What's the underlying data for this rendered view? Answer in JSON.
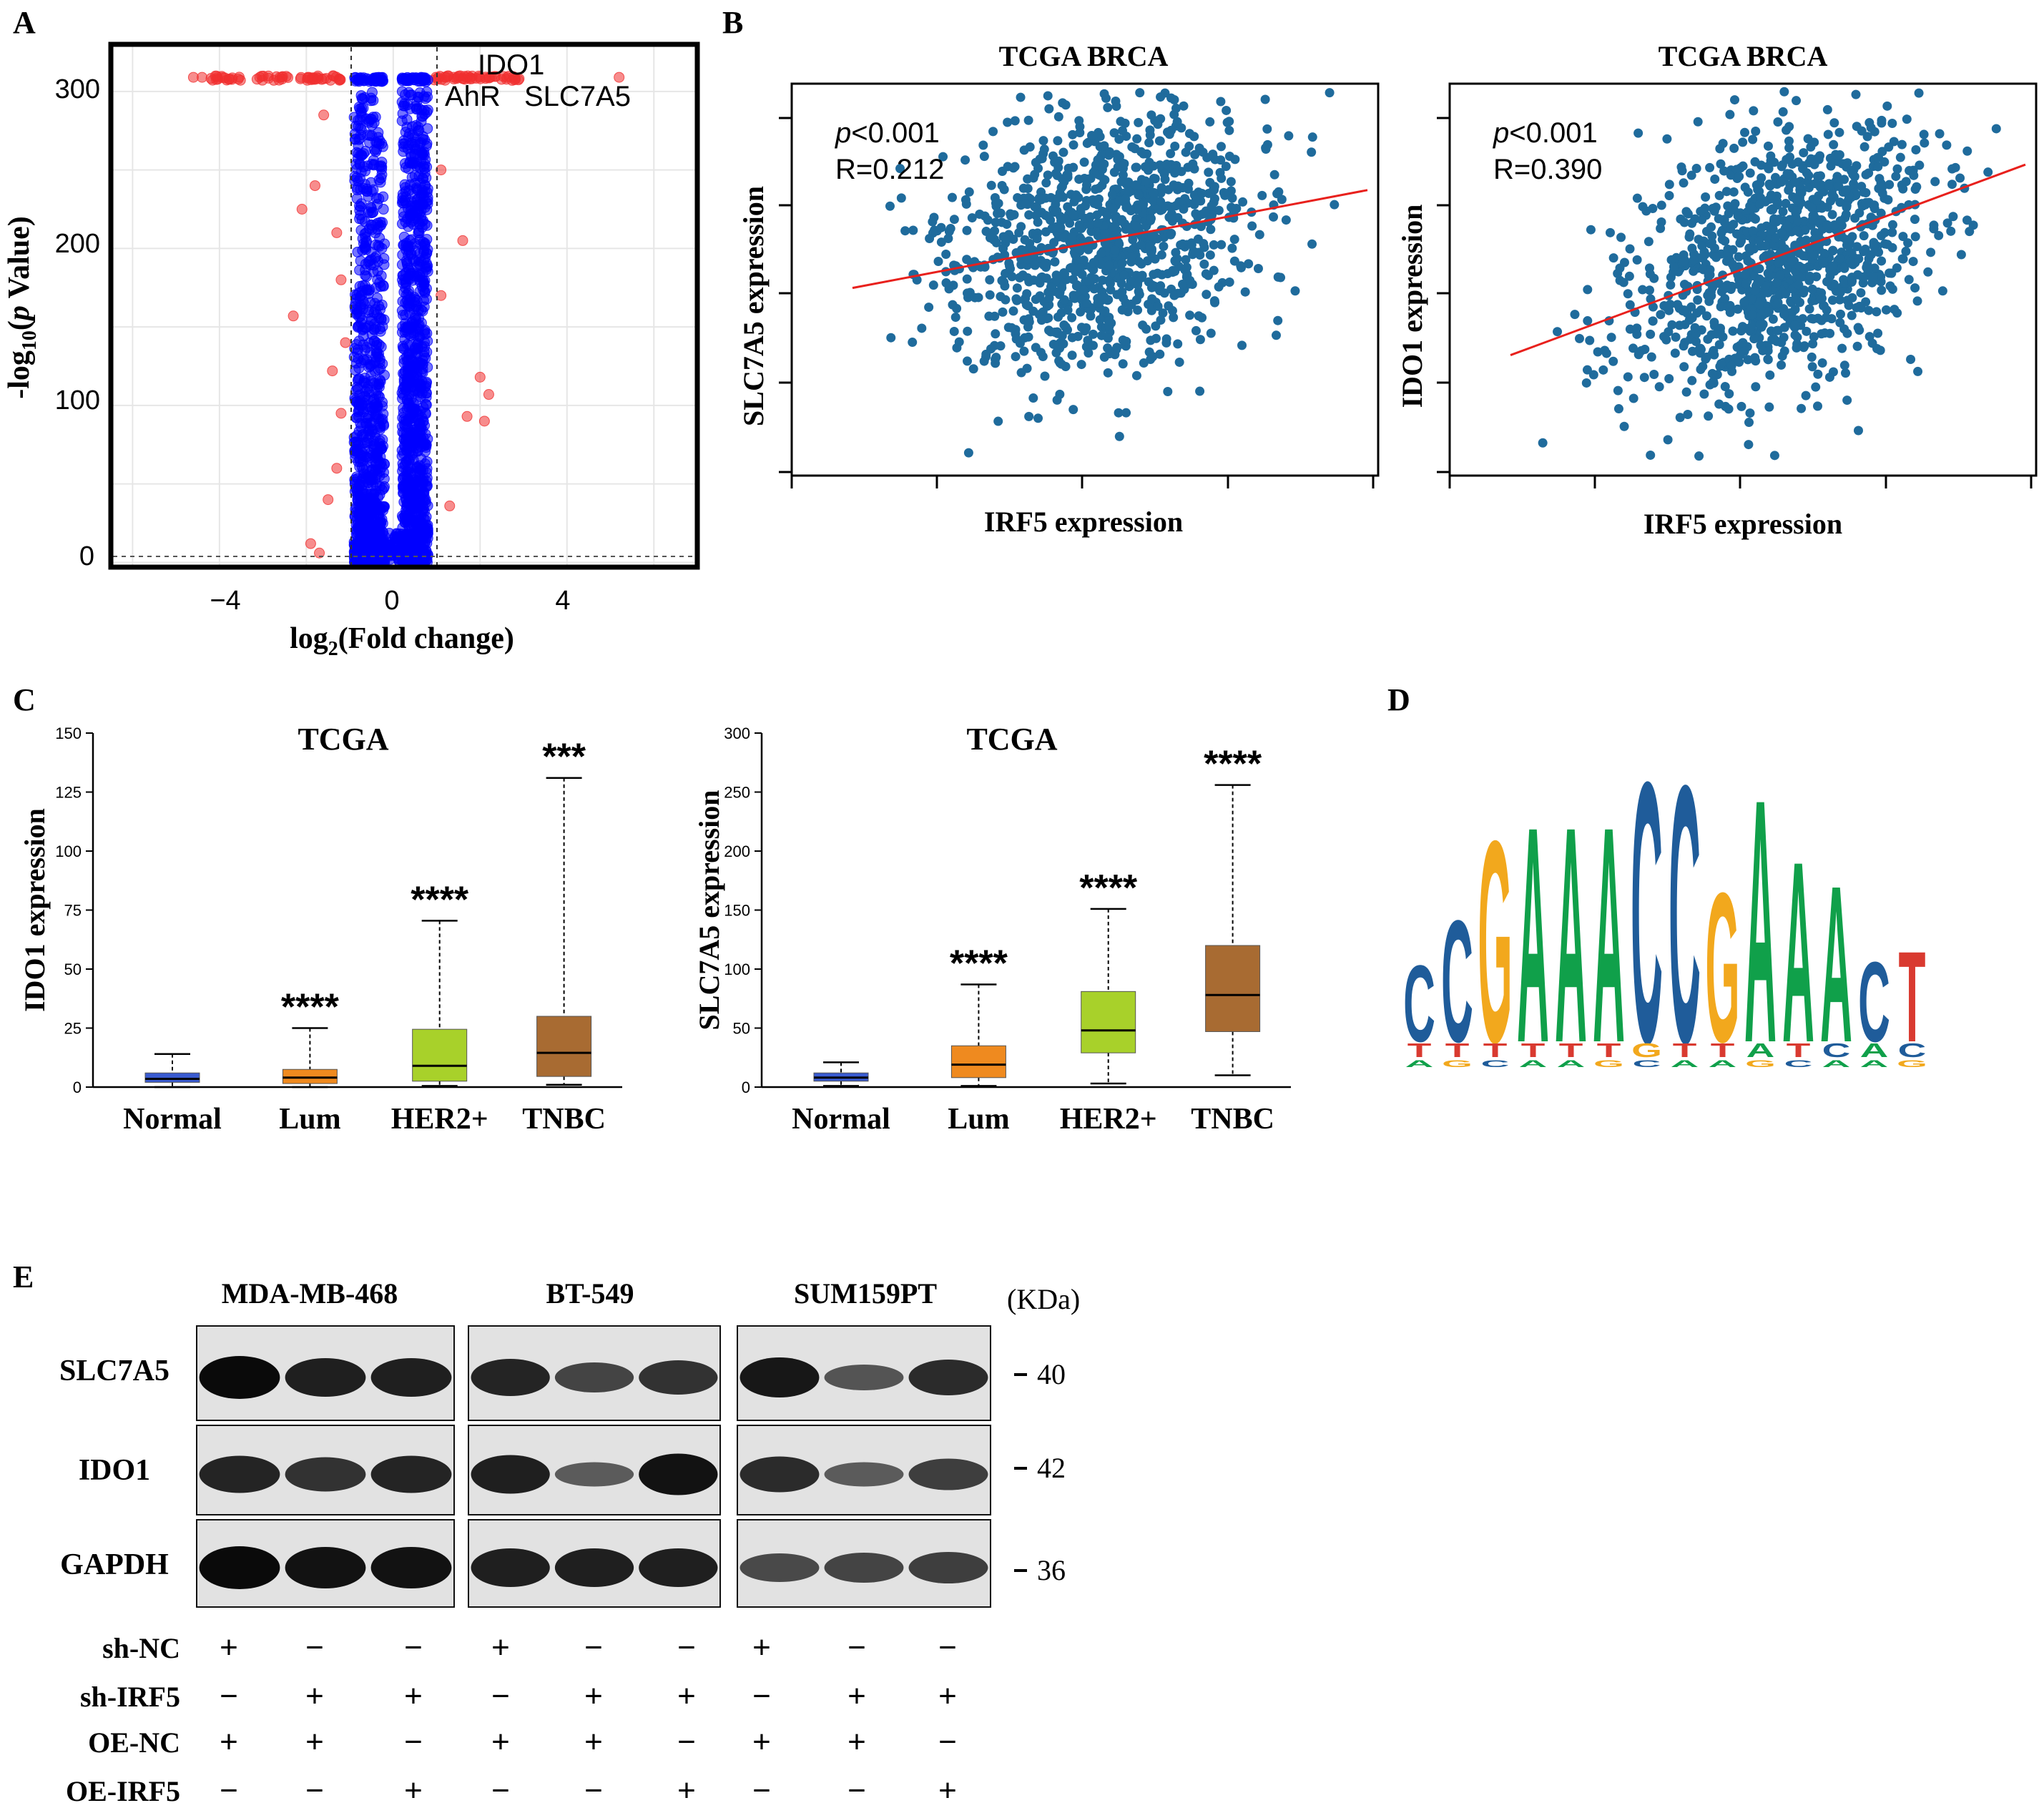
{
  "panels": {
    "A": {
      "letter": "A",
      "xlabel_main": "log",
      "xlabel_sub": "2",
      "xlabel_rest": "(Fold change)",
      "ylabel_pre": "-log",
      "ylabel_sub": "10",
      "ylabel_p": "p",
      "ylabel_rest": " Value)",
      "xticks": [
        "−4",
        "0",
        "4"
      ],
      "yticks": [
        "0",
        "100",
        "200",
        "300"
      ],
      "gene_labels": [
        "IDO1",
        "AhR",
        "SLC7A5"
      ]
    },
    "B": {
      "letter": "B",
      "plots": [
        {
          "title": "TCGA BRCA",
          "xlabel": "IRF5 expression",
          "ylabel": "SLC7A5 expression",
          "p_italic": "p",
          "p_rest": "<0.001",
          "r_text": "R=0.212"
        },
        {
          "title": "TCGA BRCA",
          "xlabel": "IRF5 expression",
          "ylabel": "IDO1 expression",
          "p_italic": "p",
          "p_rest": "<0.001",
          "r_text": "R=0.390"
        }
      ]
    },
    "C": {
      "letter": "C"
    },
    "D": {
      "letter": "D",
      "logo_top": [
        "C",
        "C",
        "G",
        "A",
        "A",
        "A",
        "C",
        "C",
        "G",
        "A",
        "A",
        "A",
        "C",
        "T"
      ]
    },
    "E": {
      "letter": "E",
      "cell_lines": [
        "MDA-MB-468",
        "BT-549",
        "SUM159PT"
      ],
      "kda_label": "(KDa)",
      "proteins": [
        {
          "name": "SLC7A5",
          "kda": "40"
        },
        {
          "name": "IDO1",
          "kda": "42"
        },
        {
          "name": "GAPDH",
          "kda": "36"
        }
      ],
      "conditions": [
        {
          "name": "sh-NC",
          "signs": [
            "+",
            "−",
            "−",
            "+",
            "−",
            "−",
            "+",
            "−",
            "−"
          ]
        },
        {
          "name": "sh-IRF5",
          "signs": [
            "−",
            "+",
            "+",
            "−",
            "+",
            "+",
            "−",
            "+",
            "+"
          ]
        },
        {
          "name": "OE-NC",
          "signs": [
            "+",
            "+",
            "−",
            "+",
            "+",
            "−",
            "+",
            "+",
            "−"
          ]
        },
        {
          "name": "OE-IRF5",
          "signs": [
            "−",
            "−",
            "+",
            "−",
            "−",
            "+",
            "−",
            "−",
            "+"
          ]
        }
      ]
    }
  },
  "chart_data": [
    {
      "type": "scatter",
      "title": "",
      "xlabel": "log2(Fold change)",
      "ylabel": "-log10(p Value)",
      "xlim": [
        -6.5,
        7
      ],
      "ylim": [
        -3,
        330
      ],
      "xticks": [
        -4,
        0,
        4
      ],
      "yticks": [
        0,
        100,
        200,
        300
      ],
      "thresholds": {
        "x": [
          -1,
          1
        ],
        "y": 0
      },
      "series": [
        {
          "name": "",
          "color": "#0000ff",
          "points": []
        },
        {
          "name": "",
          "color": "#f03030",
          "points": []
        }
      ],
      "annotations": [
        "IDO1",
        "AhR",
        "SLC7A5"
      ],
      "grid": true,
      "colors": {
        "down_nonsig": "#0000ff",
        "sig": "#f03030"
      }
    },
    {
      "type": "scatter",
      "title": "TCGA BRCA",
      "xlabel": "IRF5 expression",
      "ylabel": "SLC7A5 expression",
      "annotations": [
        "p<0.001",
        "R=0.212"
      ],
      "regression": {
        "r": 0.212
      },
      "color": "#1f6b9c",
      "line_color": "#e8201c"
    },
    {
      "type": "scatter",
      "title": "TCGA BRCA",
      "xlabel": "IRF5 expression",
      "ylabel": "IDO1 expression",
      "annotations": [
        "p<0.001",
        "R=0.390"
      ],
      "regression": {
        "r": 0.39
      },
      "color": "#1f6b9c",
      "line_color": "#e8201c"
    },
    {
      "type": "box",
      "title": "TCGA",
      "ylabel": "IDO1 expression",
      "categories": [
        "Normal",
        "Lum",
        "HER2+",
        "TNBC"
      ],
      "ylim": [
        0,
        150
      ],
      "yticks": [
        0,
        25,
        50,
        75,
        100,
        125,
        150
      ],
      "boxes": [
        {
          "min": 0,
          "q1": 2,
          "median": 3.5,
          "q3": 6,
          "max": 14,
          "sig": ""
        },
        {
          "min": 0,
          "q1": 1.5,
          "median": 4,
          "q3": 7.5,
          "max": 25,
          "sig": "****"
        },
        {
          "min": 0.5,
          "q1": 2.5,
          "median": 9,
          "q3": 24.5,
          "max": 70.5,
          "sig": "****"
        },
        {
          "min": 1,
          "q1": 4.5,
          "median": 14.5,
          "q3": 30,
          "max": 131,
          "sig": "***"
        }
      ],
      "colors": [
        "#3a5bd0",
        "#ef8a1f",
        "#a8d12a",
        "#a86b32"
      ]
    },
    {
      "type": "box",
      "title": "TCGA",
      "ylabel": "SLC7A5 expression",
      "categories": [
        "Normal",
        "Lum",
        "HER2+",
        "TNBC"
      ],
      "ylim": [
        0,
        300
      ],
      "yticks": [
        0,
        50,
        100,
        150,
        200,
        250,
        300
      ],
      "boxes": [
        {
          "min": 1,
          "q1": 5,
          "median": 8,
          "q3": 12,
          "max": 21,
          "sig": ""
        },
        {
          "min": 1,
          "q1": 8,
          "median": 19,
          "q3": 35,
          "max": 87,
          "sig": "****"
        },
        {
          "min": 3,
          "q1": 29,
          "median": 48,
          "q3": 81,
          "max": 151,
          "sig": "****"
        },
        {
          "min": 10,
          "q1": 47,
          "median": 78,
          "q3": 120,
          "max": 256,
          "sig": "****"
        }
      ],
      "colors": [
        "#3a5bd0",
        "#ef8a1f",
        "#a8d12a",
        "#a86b32"
      ]
    }
  ]
}
